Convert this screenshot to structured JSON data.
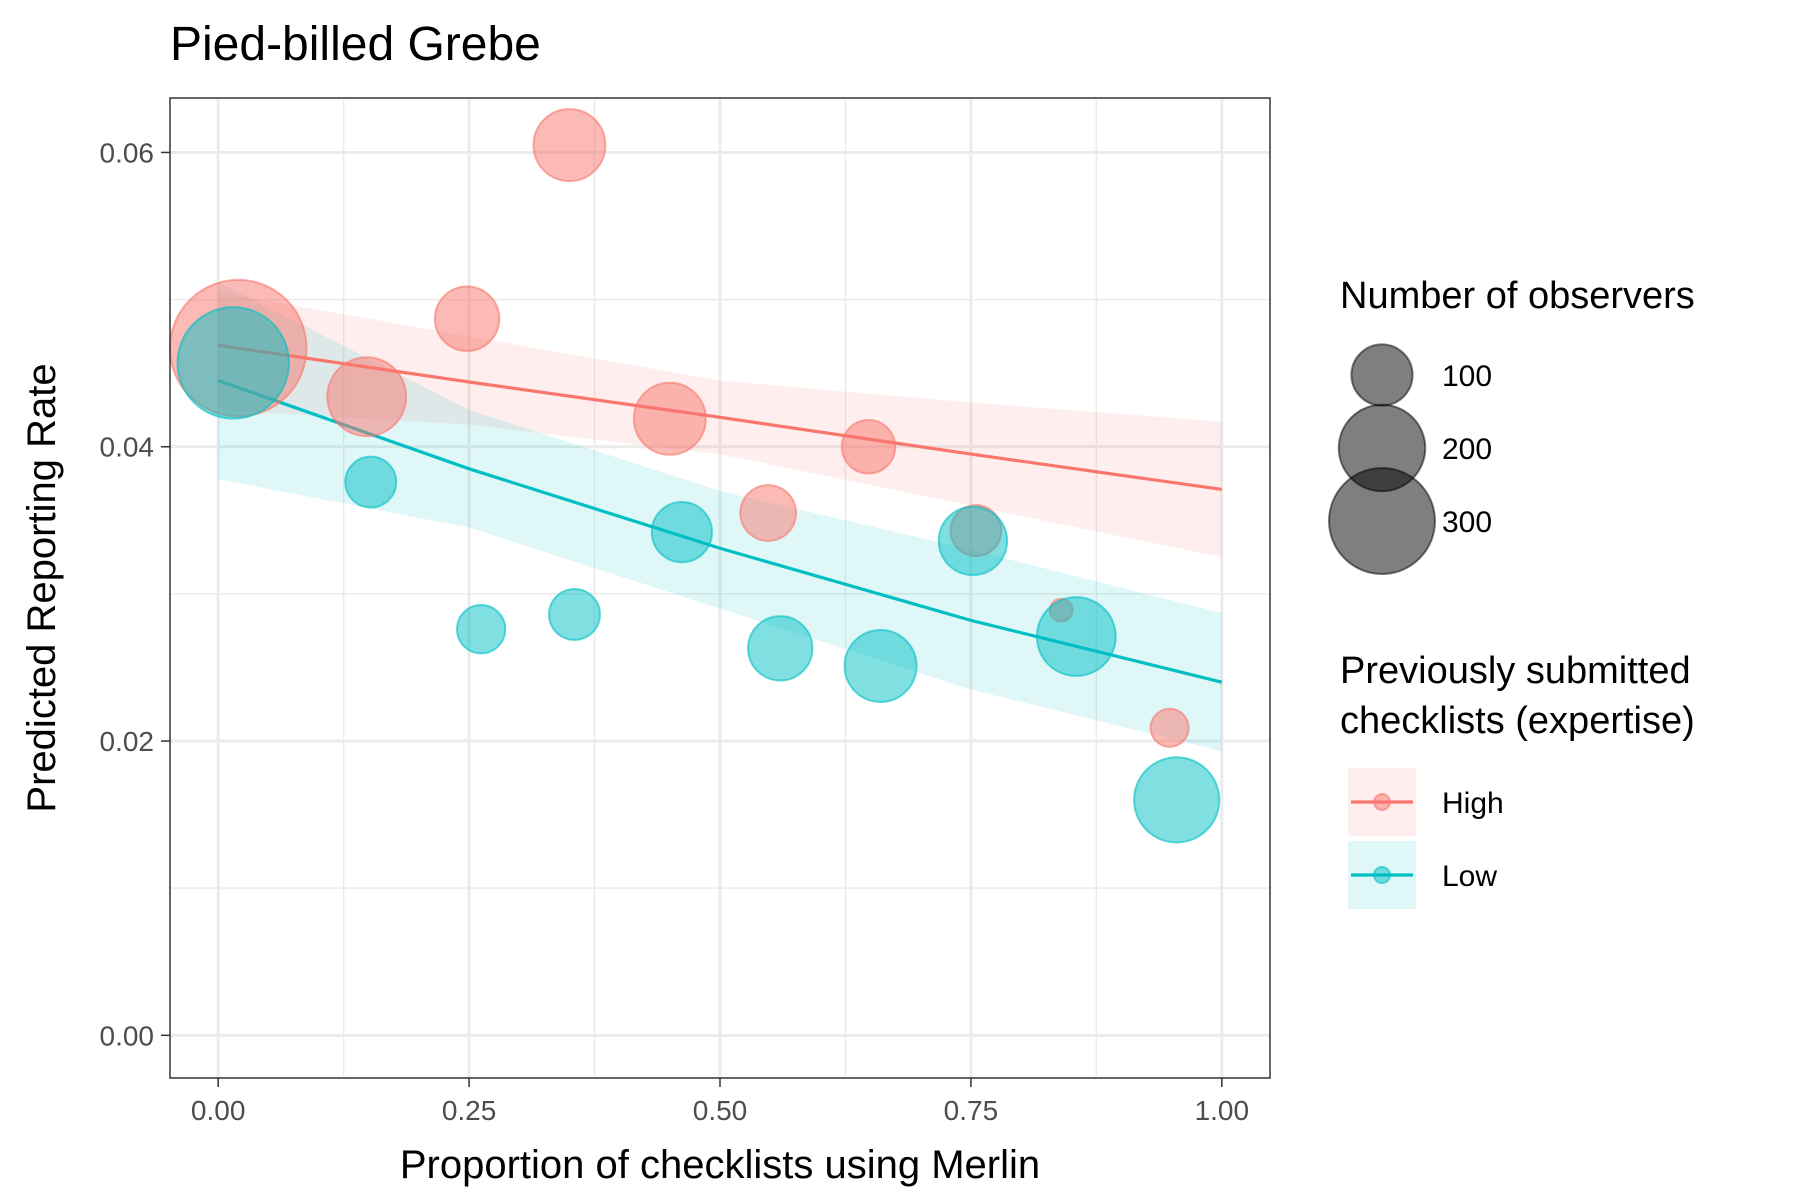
{
  "chart_data": {
    "type": "scatter",
    "title": "Pied-billed Grebe",
    "xlabel": "Proportion of checklists using Merlin",
    "ylabel": "Predicted Reporting Rate",
    "xlim": [
      -0.048,
      1.048
    ],
    "ylim": [
      -0.0029,
      0.0637
    ],
    "x_ticks": [
      0.0,
      0.25,
      0.5,
      0.75,
      1.0
    ],
    "x_tick_labels": [
      "0.00",
      "0.25",
      "0.50",
      "0.75",
      "1.00"
    ],
    "y_ticks": [
      0.0,
      0.02,
      0.04,
      0.06
    ],
    "y_tick_labels": [
      "0.00",
      "0.02",
      "0.04",
      "0.06"
    ],
    "grid": true,
    "legend_placement": "right",
    "size_legend": {
      "title": "Number of observers",
      "entries": [
        {
          "label": "100",
          "value": 100
        },
        {
          "label": "200",
          "value": 200
        },
        {
          "label": "300",
          "value": 300
        }
      ]
    },
    "color_legend": {
      "title_lines": [
        "Previously submitted",
        "checklists (expertise)"
      ],
      "entries": [
        {
          "label": "High",
          "color": "#F8766D"
        },
        {
          "label": "Low",
          "color": "#00BFC4"
        }
      ]
    },
    "series": [
      {
        "name": "High",
        "color": "#F8766D",
        "points": [
          {
            "x": 0.02,
            "y": 0.0467,
            "n": 360
          },
          {
            "x": 0.148,
            "y": 0.0434,
            "n": 120
          },
          {
            "x": 0.248,
            "y": 0.0487,
            "n": 80
          },
          {
            "x": 0.35,
            "y": 0.0605,
            "n": 100
          },
          {
            "x": 0.45,
            "y": 0.0419,
            "n": 100
          },
          {
            "x": 0.548,
            "y": 0.0355,
            "n": 60
          },
          {
            "x": 0.648,
            "y": 0.04,
            "n": 55
          },
          {
            "x": 0.755,
            "y": 0.0343,
            "n": 50
          },
          {
            "x": 0.84,
            "y": 0.0289,
            "n": 10
          },
          {
            "x": 0.948,
            "y": 0.0209,
            "n": 28
          }
        ],
        "fit": {
          "x": [
            0,
            0.25,
            0.5,
            0.75,
            1.0
          ],
          "y": [
            0.0469,
            0.0444,
            0.042,
            0.0395,
            0.0371
          ]
        },
        "band": {
          "x": [
            0,
            0.25,
            0.5,
            0.75,
            1.0
          ],
          "lower": [
            0.0425,
            0.0415,
            0.0395,
            0.036,
            0.0325
          ],
          "upper": [
            0.0505,
            0.0475,
            0.0445,
            0.043,
            0.0417
          ]
        }
      },
      {
        "name": "Low",
        "color": "#00BFC4",
        "points": [
          {
            "x": 0.015,
            "y": 0.0457,
            "n": 240
          },
          {
            "x": 0.152,
            "y": 0.0376,
            "n": 50
          },
          {
            "x": 0.262,
            "y": 0.0276,
            "n": 45
          },
          {
            "x": 0.355,
            "y": 0.0286,
            "n": 50
          },
          {
            "x": 0.462,
            "y": 0.0342,
            "n": 70
          },
          {
            "x": 0.56,
            "y": 0.0263,
            "n": 80
          },
          {
            "x": 0.66,
            "y": 0.0251,
            "n": 100
          },
          {
            "x": 0.752,
            "y": 0.0336,
            "n": 90
          },
          {
            "x": 0.855,
            "y": 0.0271,
            "n": 120
          },
          {
            "x": 0.955,
            "y": 0.016,
            "n": 140
          }
        ],
        "fit": {
          "x": [
            0,
            0.25,
            0.5,
            0.75,
            1.0
          ],
          "y": [
            0.0445,
            0.0385,
            0.0331,
            0.0282,
            0.024
          ]
        },
        "band": {
          "x": [
            0,
            0.25,
            0.5,
            0.75,
            1.0
          ],
          "lower": [
            0.0378,
            0.0345,
            0.029,
            0.0235,
            0.0193
          ],
          "upper": [
            0.0512,
            0.0425,
            0.037,
            0.033,
            0.0287
          ]
        }
      }
    ]
  }
}
